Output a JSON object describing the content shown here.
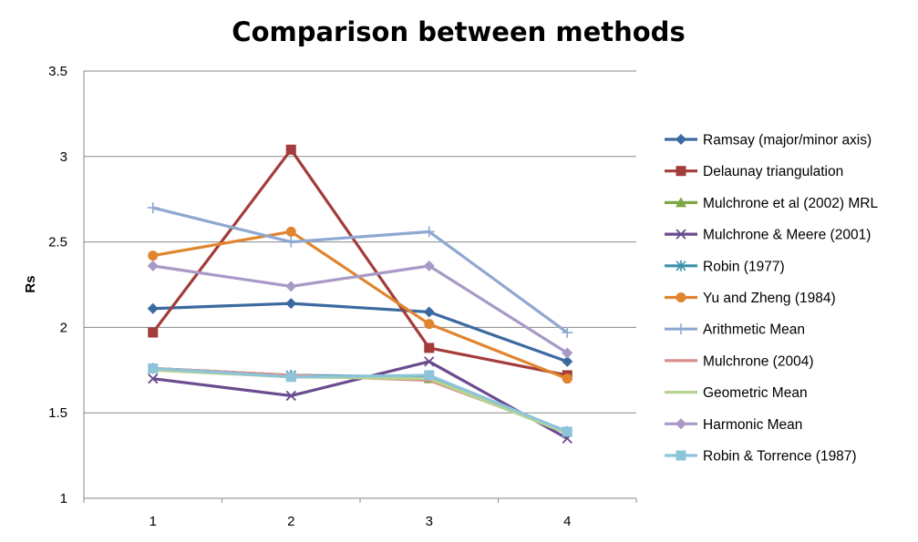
{
  "chart_data": {
    "type": "line",
    "title": "Comparison between methods",
    "xlabel": "",
    "ylabel": "Rs",
    "x": [
      1,
      2,
      3,
      4
    ],
    "x_tick_labels": [
      "1",
      "2",
      "3",
      "4"
    ],
    "ylim": [
      1,
      3.5
    ],
    "y_ticks": [
      1,
      1.5,
      2,
      2.5,
      3,
      3.5
    ],
    "y_tick_labels": [
      "1",
      "1.5",
      "2",
      "2.5",
      "3",
      "3.5"
    ],
    "grid": "horizontal",
    "legend_position": "right",
    "series": [
      {
        "name": "Ramsay (major/minor axis)",
        "color": "#3B6AA0",
        "marker": "diamond",
        "values": [
          2.11,
          2.14,
          2.09,
          1.8
        ]
      },
      {
        "name": "Delaunay triangulation",
        "color": "#A33C3A",
        "marker": "square",
        "values": [
          1.97,
          3.04,
          1.88,
          1.72
        ]
      },
      {
        "name": "Mulchrone et al (2002) MRL",
        "color": "#7FA644",
        "marker": "triangle",
        "values": [
          1.76,
          1.72,
          1.7,
          1.39
        ]
      },
      {
        "name": "Mulchrone & Meere (2001)",
        "color": "#6A4C8F",
        "marker": "x",
        "values": [
          1.7,
          1.6,
          1.8,
          1.35
        ]
      },
      {
        "name": "Robin (1977)",
        "color": "#3A91A8",
        "marker": "asterisk",
        "values": [
          1.76,
          1.72,
          1.71,
          1.39
        ]
      },
      {
        "name": "Yu and Zheng (1984)",
        "color": "#E0852E",
        "marker": "circle",
        "values": [
          2.42,
          2.56,
          2.02,
          1.7
        ]
      },
      {
        "name": "Arithmetic Mean",
        "color": "#8EA8D2",
        "marker": "plus",
        "values": [
          2.7,
          2.5,
          2.56,
          1.97
        ]
      },
      {
        "name": "Mulchrone (2004)",
        "color": "#D98F8B",
        "marker": "none",
        "values": [
          1.76,
          1.72,
          1.69,
          1.39
        ]
      },
      {
        "name": "Geometric Mean",
        "color": "#B7D490",
        "marker": "none",
        "values": [
          1.75,
          1.71,
          1.7,
          1.38
        ]
      },
      {
        "name": "Harmonic Mean",
        "color": "#A899C6",
        "marker": "diamond",
        "values": [
          2.36,
          2.24,
          2.36,
          1.85
        ]
      },
      {
        "name": "Robin & Torrence (1987)",
        "color": "#8EC4DA",
        "marker": "square",
        "values": [
          1.76,
          1.71,
          1.72,
          1.39
        ]
      }
    ]
  }
}
